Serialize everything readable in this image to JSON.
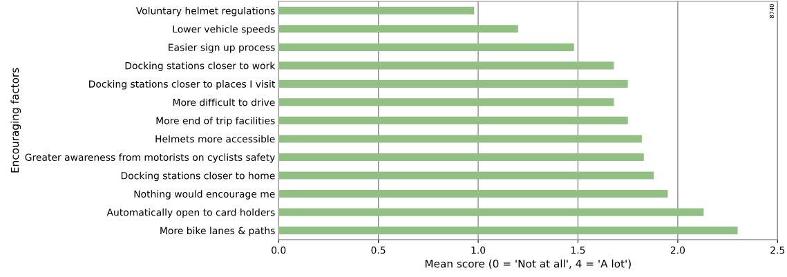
{
  "chart_data": {
    "type": "bar",
    "orientation": "horizontal",
    "xlabel": "Mean score (0 = 'Not at all', 4 = 'A lot')",
    "ylabel": "Encouraging factors",
    "categories": [
      "Voluntary helmet regulations",
      "Lower vehicle speeds",
      "Easier sign up process",
      "Docking stations closer to work",
      "Docking stations closer to places I visit",
      "More difficult to drive",
      "More end of trip facilities",
      "Helmets more accessible",
      "Greater awareness from motorists on cyclists safety",
      "Docking stations closer to home",
      "Nothing would encourage me",
      "Automatically open to card holders",
      "More bike lanes & paths"
    ],
    "values": [
      0.98,
      1.2,
      1.48,
      1.68,
      1.75,
      1.68,
      1.75,
      1.82,
      1.83,
      1.88,
      1.95,
      2.13,
      2.3
    ],
    "color": "#92bf83",
    "xlim": [
      0,
      2.5
    ],
    "xticks": [
      {
        "value": 0,
        "label": "0.0"
      },
      {
        "value": 0.5,
        "label": "0.5"
      },
      {
        "value": 1,
        "label": "1.0"
      },
      {
        "value": 1.5,
        "label": "1.5"
      },
      {
        "value": 2,
        "label": "2.0"
      },
      {
        "value": 2.5,
        "label": "2.5"
      }
    ],
    "grid": "x",
    "legend": false,
    "annotations": [
      "8740"
    ]
  }
}
